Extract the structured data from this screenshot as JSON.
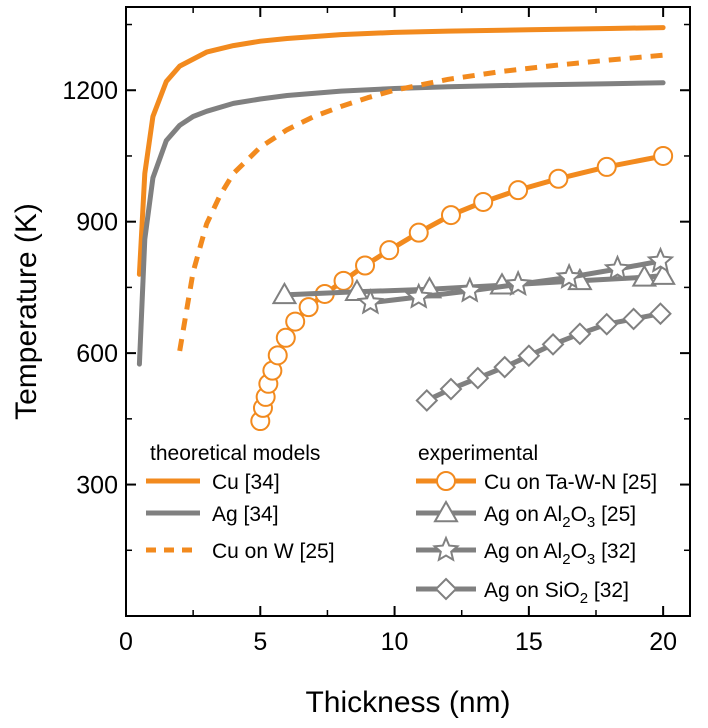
{
  "chart_data": {
    "type": "line",
    "xlabel": "Thickness (nm)",
    "ylabel": "Temperature (K)",
    "xlim": [
      0,
      21
    ],
    "ylim": [
      0,
      1390
    ],
    "xticks": [
      0,
      5,
      10,
      15,
      20
    ],
    "yticks": [
      300,
      600,
      900,
      1200
    ],
    "legend": {
      "left_title": "theoretical models",
      "right_title": "experimental"
    },
    "series": [
      {
        "name": "Cu [34]",
        "color": "#F28A1E",
        "style": "solid",
        "marker": "none",
        "x": [
          0.5,
          0.7,
          1.0,
          1.5,
          2.0,
          3.0,
          4.0,
          5.0,
          6.0,
          8.0,
          10.0,
          12.0,
          15.0,
          18.0,
          20.0
        ],
        "y": [
          780,
          1010,
          1140,
          1220,
          1255,
          1287,
          1302,
          1312,
          1318,
          1327,
          1332,
          1335,
          1338,
          1341,
          1343
        ]
      },
      {
        "name": "Ag [34]",
        "color": "#808080",
        "style": "solid",
        "marker": "none",
        "x": [
          0.5,
          0.7,
          1.0,
          1.5,
          2.0,
          2.5,
          3.0,
          4.0,
          5.0,
          6.0,
          8.0,
          10.0,
          12.0,
          15.0,
          18.0,
          20.0
        ],
        "y": [
          575,
          860,
          1000,
          1085,
          1120,
          1140,
          1152,
          1170,
          1180,
          1188,
          1198,
          1204,
          1208,
          1212,
          1215,
          1217
        ]
      },
      {
        "name": "Cu on W [25]",
        "color": "#F28A1E",
        "style": "dashed",
        "marker": "none",
        "x": [
          2.0,
          2.5,
          3.0,
          3.5,
          4.0,
          5.0,
          6.0,
          7.0,
          8.0,
          9.0,
          10.0,
          12.0,
          14.0,
          16.0,
          18.0,
          20.0
        ],
        "y": [
          605,
          785,
          895,
          960,
          1010,
          1070,
          1110,
          1140,
          1163,
          1183,
          1200,
          1225,
          1243,
          1257,
          1269,
          1280
        ]
      },
      {
        "name": "Cu on Ta-W-N [25]",
        "color": "#F28A1E",
        "style": "solid",
        "marker": "circle",
        "x": [
          5.0,
          5.1,
          5.2,
          5.3,
          5.45,
          5.65,
          5.95,
          6.3,
          6.8,
          7.4,
          8.1,
          8.9,
          9.8,
          10.9,
          12.1,
          13.3,
          14.6,
          16.1,
          17.9,
          20.0
        ],
        "y": [
          445,
          475,
          500,
          530,
          560,
          595,
          635,
          672,
          705,
          735,
          765,
          800,
          835,
          875,
          915,
          945,
          972,
          998,
          1025,
          1050
        ]
      },
      {
        "name": "Ag on Al2O3 [25]",
        "color": "#808080",
        "style": "solid",
        "marker": "triangle",
        "x": [
          5.9,
          8.6,
          11.3,
          14.0,
          16.9,
          19.3,
          20.0
        ],
        "y": [
          733,
          740,
          746,
          755,
          765,
          773,
          777
        ]
      },
      {
        "name": "Ag on Al2O3 [32]",
        "color": "#808080",
        "style": "solid",
        "marker": "star",
        "x": [
          9.1,
          10.9,
          12.8,
          14.6,
          16.5,
          18.3,
          19.9
        ],
        "y": [
          715,
          728,
          742,
          757,
          773,
          792,
          810
        ]
      },
      {
        "name": "Ag on SiO2 [32]",
        "color": "#808080",
        "style": "solid",
        "marker": "diamond",
        "x": [
          11.2,
          12.1,
          13.1,
          14.1,
          15.0,
          15.9,
          16.9,
          17.9,
          18.9,
          19.9
        ],
        "y": [
          492,
          518,
          543,
          568,
          594,
          620,
          644,
          666,
          678,
          690
        ]
      }
    ]
  }
}
